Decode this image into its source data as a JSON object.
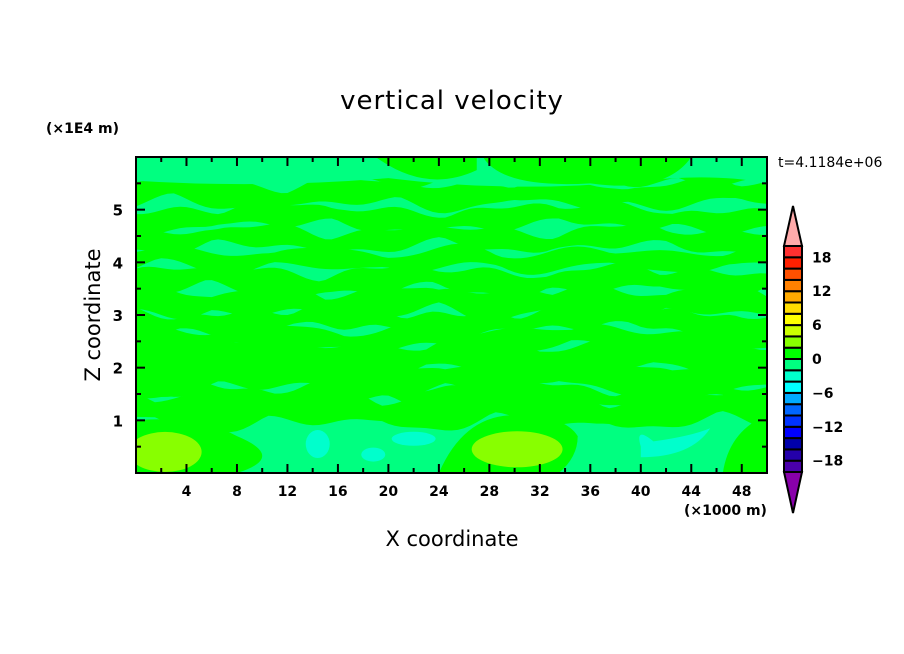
{
  "chart_data": {
    "type": "contour",
    "title": "vertical velocity",
    "xlabel": "X coordinate",
    "ylabel": "Z coordinate",
    "x_unit": "(×1000 m)",
    "y_unit": "(×1E4 m)",
    "xlim": [
      0,
      50
    ],
    "ylim": [
      0,
      6
    ],
    "x_ticks": [
      "4",
      "8",
      "12",
      "16",
      "20",
      "24",
      "28",
      "32",
      "36",
      "40",
      "44",
      "48"
    ],
    "y_ticks": [
      "1",
      "2",
      "3",
      "4",
      "5"
    ],
    "annotation": "t=4.1184e+06",
    "colorbar": {
      "levels": [
        -20,
        -18,
        -16,
        -14,
        -12,
        -10,
        -8,
        -6,
        -4,
        -2,
        0,
        2,
        4,
        6,
        8,
        10,
        12,
        14,
        16,
        18,
        20
      ],
      "tick_labels": [
        "18",
        "12",
        "6",
        "0",
        "−6",
        "−12",
        "−18"
      ],
      "tick_values": [
        18,
        12,
        6,
        0,
        -6,
        -12,
        -18
      ],
      "colors": [
        "#4a00aa",
        "#2400aa",
        "#0000aa",
        "#0000ff",
        "#0033ff",
        "#0066ff",
        "#00aaff",
        "#00ffff",
        "#00ffcc",
        "#00ff80",
        "#00ff00",
        "#88ff00",
        "#ccff00",
        "#ffff00",
        "#ffdd00",
        "#ffaa00",
        "#ff8000",
        "#ff5000",
        "#ff2000",
        "#ff3030"
      ],
      "under_color": "#8800aa",
      "over_color": "#ffaaaa",
      "extend": "both"
    },
    "field_description_values": {
      "dominant_range": [
        -2,
        2
      ],
      "local_max_range": [
        2,
        4
      ],
      "local_min_range": [
        -4,
        -2
      ]
    }
  }
}
